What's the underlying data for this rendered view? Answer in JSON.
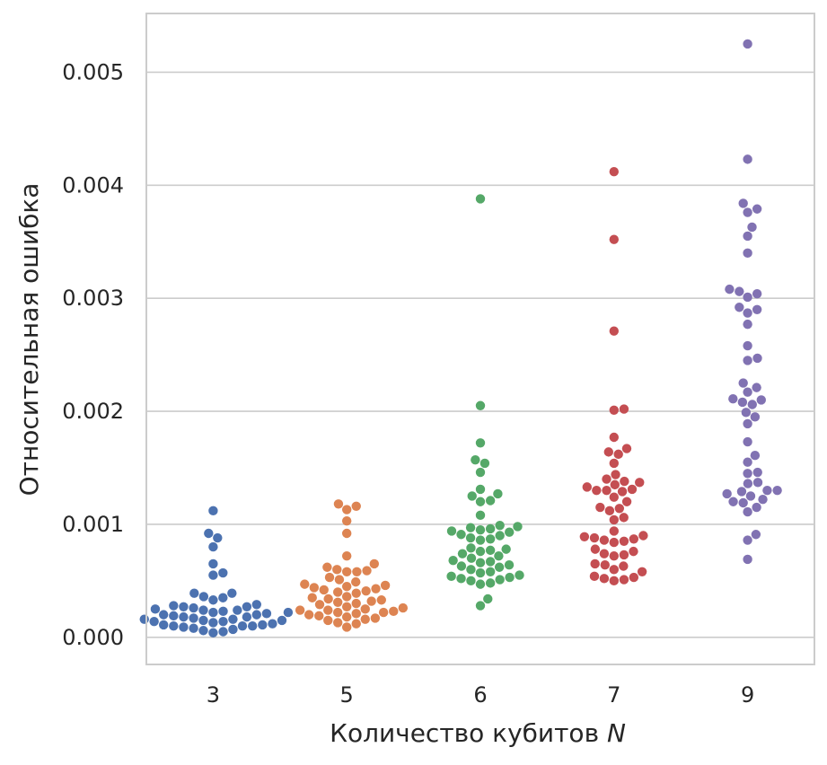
{
  "chart_data": {
    "type": "scatter",
    "subtype": "swarm",
    "title": "",
    "xlabel": "Количество кубитов",
    "xlabel_symbol": "N",
    "ylabel": "Относительная ошибка",
    "categories": [
      "3",
      "5",
      "6",
      "7",
      "9"
    ],
    "ylim": [
      -0.00024,
      0.00552
    ],
    "yticks": [
      0.0,
      0.001,
      0.002,
      0.003,
      0.004,
      0.005
    ],
    "ytick_labels": [
      "0.000",
      "0.001",
      "0.002",
      "0.003",
      "0.004",
      "0.005"
    ],
    "grid": "horizontal",
    "legend": "none",
    "series": [
      {
        "category": "3",
        "color": "#4c72b0",
        "values": [
          0.00112,
          0.00092,
          0.00088,
          0.0008,
          0.00065,
          0.00057,
          0.00055,
          0.00039,
          0.00039,
          0.00036,
          0.00035,
          0.00033,
          0.00029,
          0.00028,
          0.00027,
          0.00027,
          0.00026,
          0.00025,
          0.00024,
          0.00024,
          0.00023,
          0.00022,
          0.00022,
          0.00021,
          0.0002,
          0.0002,
          0.00019,
          0.00018,
          0.00018,
          0.00017,
          0.00016,
          0.00016,
          0.00015,
          0.00015,
          0.00014,
          0.00014,
          0.00013,
          0.00012,
          0.00011,
          0.00011,
          0.0001,
          0.0001,
          0.0001,
          9e-05,
          8e-05,
          7e-05,
          6e-05,
          5e-05,
          4e-05
        ]
      },
      {
        "category": "5",
        "color": "#dd8452",
        "values": [
          0.00118,
          0.00116,
          0.00113,
          0.00103,
          0.00092,
          0.00072,
          0.00065,
          0.00062,
          0.0006,
          0.00059,
          0.00058,
          0.00058,
          0.00053,
          0.00051,
          0.00049,
          0.00047,
          0.00046,
          0.00045,
          0.00044,
          0.00043,
          0.00042,
          0.00041,
          0.0004,
          0.00039,
          0.00036,
          0.00035,
          0.00034,
          0.00033,
          0.00032,
          0.00031,
          0.0003,
          0.00029,
          0.00027,
          0.00026,
          0.00025,
          0.00024,
          0.00024,
          0.00023,
          0.00022,
          0.00022,
          0.00021,
          0.0002,
          0.00019,
          0.00018,
          0.00017,
          0.00016,
          0.00015,
          0.00013,
          0.00012,
          9e-05
        ]
      },
      {
        "category": "6",
        "color": "#55a868",
        "values": [
          0.00388,
          0.00205,
          0.00172,
          0.00157,
          0.00154,
          0.00146,
          0.00131,
          0.00127,
          0.00125,
          0.00121,
          0.0012,
          0.00108,
          0.00099,
          0.00098,
          0.00097,
          0.00096,
          0.00095,
          0.00094,
          0.00093,
          0.00091,
          0.0009,
          0.00088,
          0.00087,
          0.00086,
          0.00079,
          0.00078,
          0.00077,
          0.00076,
          0.00074,
          0.00072,
          0.0007,
          0.00068,
          0.00067,
          0.00066,
          0.00064,
          0.00063,
          0.00062,
          0.0006,
          0.00058,
          0.00057,
          0.00055,
          0.00054,
          0.00053,
          0.00052,
          0.00051,
          0.0005,
          0.00048,
          0.00047,
          0.00034,
          0.00028
        ]
      },
      {
        "category": "7",
        "color": "#c44e52",
        "values": [
          0.00412,
          0.00352,
          0.00271,
          0.00202,
          0.00201,
          0.00177,
          0.00167,
          0.00164,
          0.00162,
          0.00154,
          0.00144,
          0.0014,
          0.00138,
          0.00137,
          0.00135,
          0.00133,
          0.00131,
          0.0013,
          0.0013,
          0.00129,
          0.00124,
          0.0012,
          0.00115,
          0.00114,
          0.00112,
          0.00106,
          0.00104,
          0.00094,
          0.0009,
          0.00089,
          0.00088,
          0.00087,
          0.00086,
          0.00085,
          0.00084,
          0.00078,
          0.00076,
          0.00074,
          0.00073,
          0.00072,
          0.00065,
          0.00064,
          0.00063,
          0.0006,
          0.00058,
          0.00054,
          0.00053,
          0.00052,
          0.00051,
          0.0005
        ]
      },
      {
        "category": "9",
        "color": "#8172b2",
        "values": [
          0.00525,
          0.00423,
          0.00384,
          0.00379,
          0.00376,
          0.00363,
          0.00355,
          0.0034,
          0.00308,
          0.00306,
          0.00304,
          0.00301,
          0.00292,
          0.0029,
          0.00287,
          0.00277,
          0.00258,
          0.00247,
          0.00245,
          0.00225,
          0.00221,
          0.00217,
          0.00211,
          0.0021,
          0.00208,
          0.00206,
          0.00199,
          0.00195,
          0.00189,
          0.00173,
          0.00161,
          0.00155,
          0.00146,
          0.00145,
          0.00137,
          0.00136,
          0.0013,
          0.0013,
          0.00129,
          0.00127,
          0.00125,
          0.00122,
          0.0012,
          0.00119,
          0.00115,
          0.00111,
          0.00091,
          0.00086,
          0.00069
        ]
      }
    ]
  }
}
